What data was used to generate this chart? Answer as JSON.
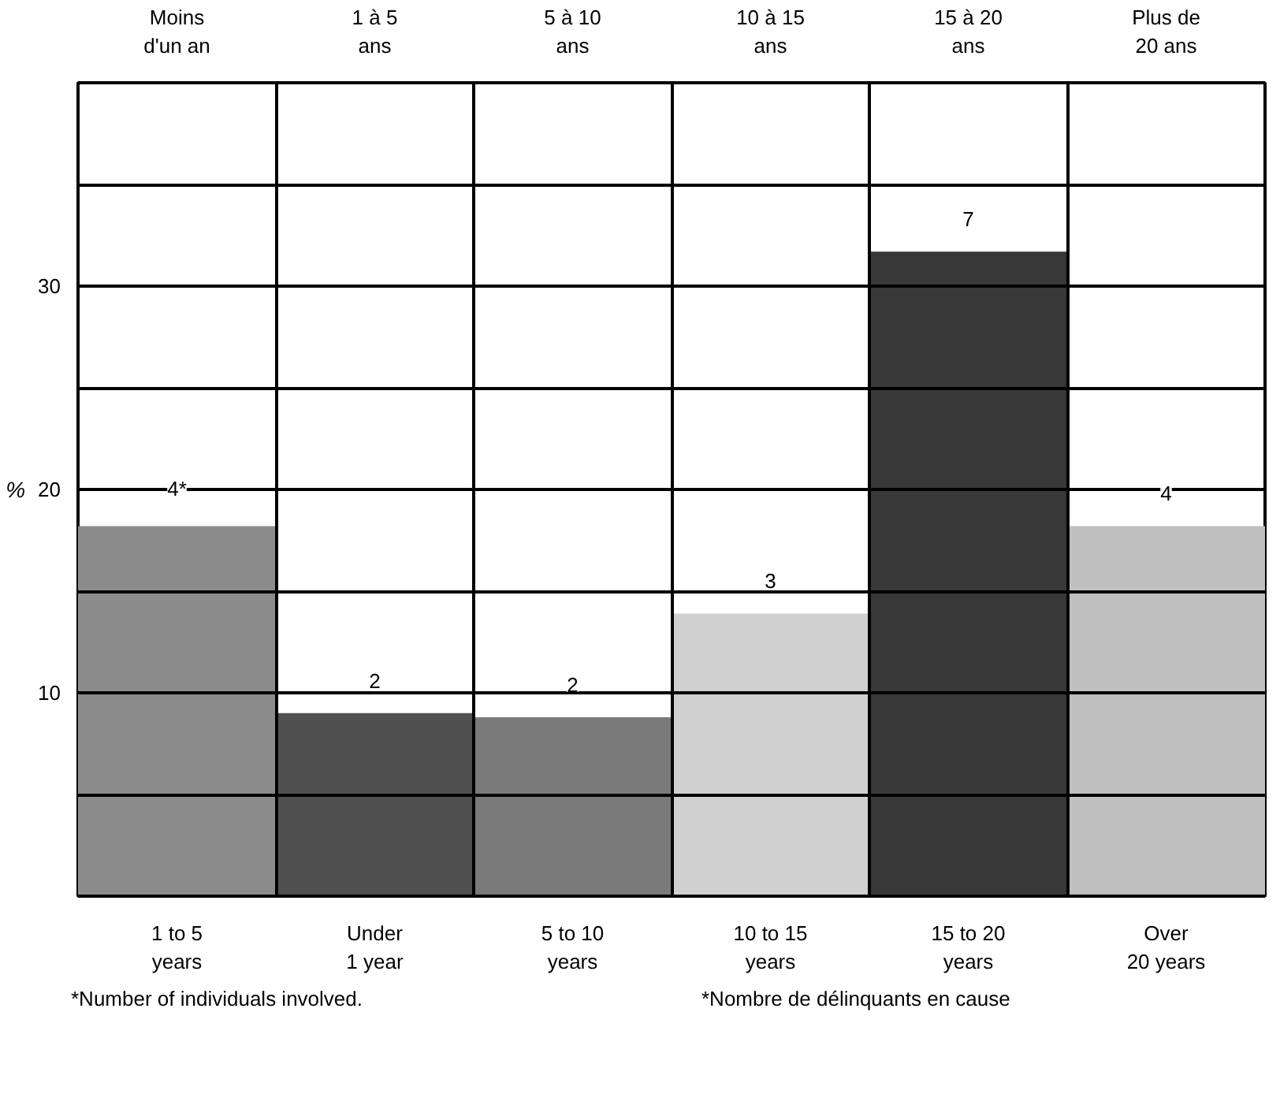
{
  "chart_data": {
    "type": "bar",
    "ylabel": "%",
    "categories": [
      "1 to 5\nyears",
      "Under\n1 year",
      "5 to 10\nyears",
      "10 to 15\nyears",
      "15 to 20\nyears",
      "Over\n20 years"
    ],
    "values": [
      18.2,
      9.0,
      8.8,
      13.9,
      31.7,
      18.2
    ],
    "colors": [
      "#8c8c8c",
      "#505050",
      "#7a7a7a",
      "#d0d0d0",
      "#383838",
      "#c0c0c0"
    ],
    "ylim": [
      0,
      40
    ],
    "yticks": [
      {
        "value": 5,
        "label": null
      },
      10,
      {
        "value": 15,
        "label": null
      },
      20,
      {
        "value": 25,
        "label": null
      },
      30,
      {
        "value": 35,
        "label": null
      }
    ],
    "grid": true,
    "annotations": [
      "Moins\nd'un an",
      "1 à 5\nans",
      "5 à 10\nans",
      "10 à 15\nans",
      "15 à 20\nans",
      "Plus de\n20 ans",
      {
        "text": "4*",
        "x": "1 to 5\nyears",
        "y": 18.2
      },
      {
        "text": "2",
        "x": "Under\n1 year",
        "y": 9.0
      },
      {
        "text": "2",
        "x": "5 to 10\nyears",
        "y": 8.8
      },
      {
        "text": "3",
        "x": "10 to 15\nyears",
        "y": 13.9
      },
      {
        "text": "7",
        "x": "15 to 20\nyears",
        "y": 31.7
      },
      {
        "text": "4",
        "x": "Over\n20 years",
        "y": 18.2
      },
      "*Number of individuals involved.",
      "*Nombre de délinquants en cause"
    ]
  }
}
